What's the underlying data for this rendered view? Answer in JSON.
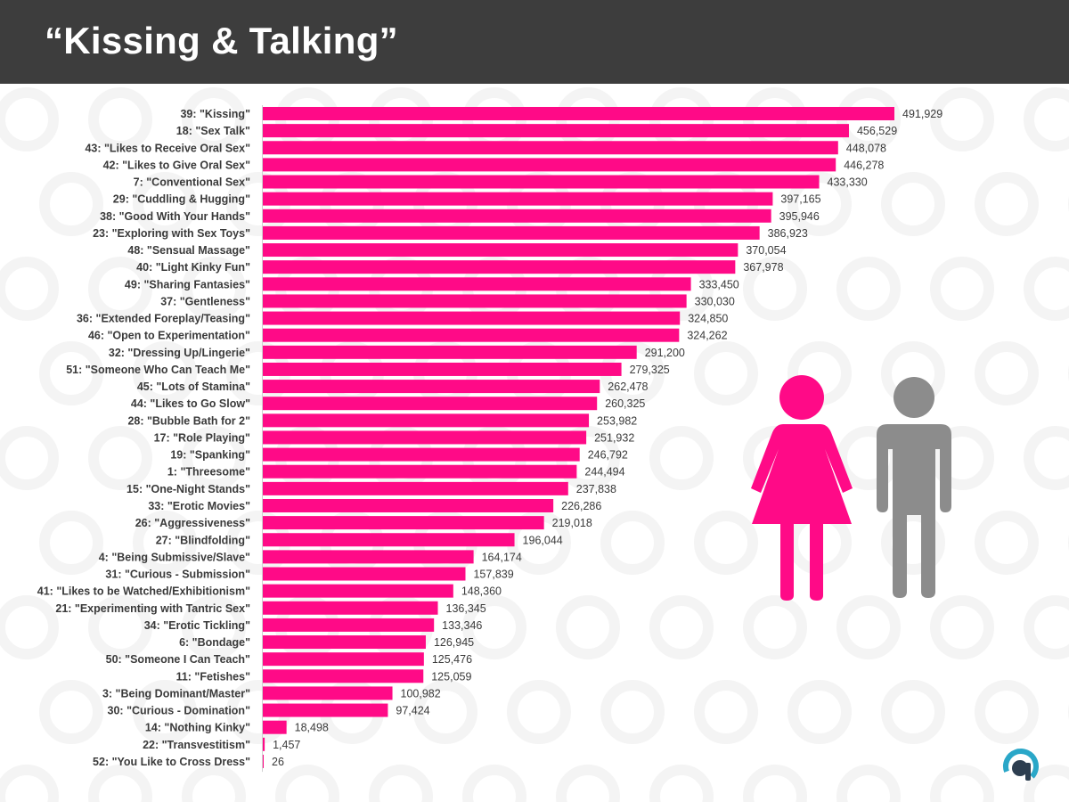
{
  "header": {
    "title": "“Kissing & Talking”"
  },
  "colors": {
    "bar": "#ff0a87",
    "header_bg": "#3d3d3d",
    "female_icon": "#ff0a87",
    "male_icon": "#8c8c8c",
    "text": "#3a3a3a"
  },
  "icons": {
    "female": "woman-icon",
    "male": "man-icon",
    "logo": "brand-logo-icon"
  },
  "chart_data": {
    "type": "bar",
    "orientation": "horizontal",
    "title": "“Kissing & Talking”",
    "xlabel": "",
    "ylabel": "",
    "xlim": [
      0,
      491929
    ],
    "grid": false,
    "legend": "none",
    "categories": [
      "39: \"Kissing\"",
      "18: \"Sex Talk\"",
      "43: \"Likes to Receive Oral Sex\"",
      "42: \"Likes to Give Oral Sex\"",
      "7: \"Conventional Sex\"",
      "29: \"Cuddling & Hugging\"",
      "38: \"Good With Your Hands\"",
      "23: \"Exploring with Sex Toys\"",
      "48: \"Sensual Massage\"",
      "40: \"Light Kinky Fun\"",
      "49: \"Sharing Fantasies\"",
      "37: \"Gentleness\"",
      "36: \"Extended Foreplay/Teasing\"",
      "46: \"Open to Experimentation\"",
      "32: \"Dressing Up/Lingerie\"",
      "51: \"Someone Who Can Teach Me\"",
      "45: \"Lots of Stamina\"",
      "44: \"Likes to Go Slow\"",
      "28: \"Bubble Bath for 2\"",
      "17: \"Role Playing\"",
      "19: \"Spanking\"",
      "1: \"Threesome\"",
      "15: \"One-Night Stands\"",
      "33: \"Erotic Movies\"",
      "26: \"Aggressiveness\"",
      "27: \"Blindfolding\"",
      "4: \"Being Submissive/Slave\"",
      "31: \"Curious - Submission\"",
      "41: \"Likes to be Watched/Exhibitionism\"",
      "21: \"Experimenting with Tantric Sex\"",
      "34: \"Erotic Tickling\"",
      "6: \"Bondage\"",
      "50: \"Someone I Can Teach\"",
      "11: \"Fetishes\"",
      "3: \"Being Dominant/Master\"",
      "30: \"Curious - Domination\"",
      "14: \"Nothing Kinky\"",
      "22: \"Transvestitism\"",
      "52: \"You Like to Cross Dress\""
    ],
    "values": [
      491929,
      456529,
      448078,
      446278,
      433330,
      397165,
      395946,
      386923,
      370054,
      367978,
      333450,
      330030,
      324850,
      324262,
      291200,
      279325,
      262478,
      260325,
      253982,
      251932,
      246792,
      244494,
      237838,
      226286,
      219018,
      196044,
      164174,
      157839,
      148360,
      136345,
      133346,
      126945,
      125476,
      125059,
      100982,
      97424,
      18498,
      1457,
      26
    ],
    "value_labels": [
      "491,929",
      "456,529",
      "448,078",
      "446,278",
      "433,330",
      "397,165",
      "395,946",
      "386,923",
      "370,054",
      "367,978",
      "333,450",
      "330,030",
      "324,850",
      "324,262",
      "291,200",
      "279,325",
      "262,478",
      "260,325",
      "253,982",
      "251,932",
      "246,792",
      "244,494",
      "237,838",
      "226,286",
      "219,018",
      "196,044",
      "164,174",
      "157,839",
      "148,360",
      "136,345",
      "133,346",
      "126,945",
      "125,476",
      "125,059",
      "100,982",
      "97,424",
      "18,498",
      "1,457",
      "26"
    ]
  }
}
